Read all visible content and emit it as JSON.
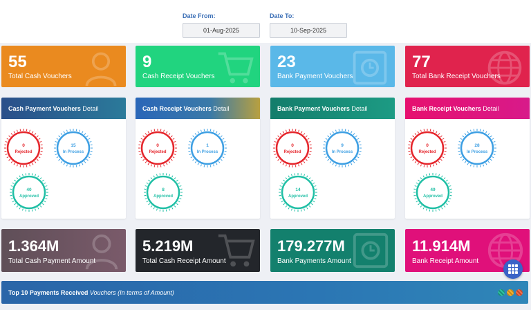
{
  "filters": {
    "date_from_label": "Date From:",
    "date_from_value": "01-Aug-2025",
    "date_to_label": "Date To:",
    "date_to_value": "10-Sep-2025"
  },
  "stat_cards": [
    {
      "value": "55",
      "label": "Total Cash Vouchers",
      "color": "#ea8a1f",
      "icon": "user-icon"
    },
    {
      "value": "9",
      "label": "Cash Receipt Vouchers",
      "color": "#21d47f",
      "icon": "cart-icon"
    },
    {
      "value": "23",
      "label": "Bank Payment Vouchers",
      "color": "#5ab8e8",
      "icon": "safe-icon"
    },
    {
      "value": "77",
      "label": "Total Bank Receipt Vouchers",
      "color": "#e0234d",
      "icon": "globe-icon"
    }
  ],
  "detail_cards": [
    {
      "title_bold": "Cash Payment Vouchers",
      "title_rest": " Detail",
      "color": "#2a5f9a",
      "rejected": {
        "value": "0",
        "label": "Rejected"
      },
      "in_process": {
        "value": "15",
        "label": "In Process"
      },
      "approved": {
        "value": "40",
        "label": "Approved"
      }
    },
    {
      "title_bold": "Cash Receipt Vouchers",
      "title_rest": " Detail",
      "color": "#2a6fb0",
      "rejected": {
        "value": "0",
        "label": "Rejected"
      },
      "in_process": {
        "value": "1",
        "label": "In Process"
      },
      "approved": {
        "value": "8",
        "label": "Approved"
      }
    },
    {
      "title_bold": "Bank Payment Vouchers",
      "title_rest": " Detail",
      "color": "#1b8f7b",
      "rejected": {
        "value": "0",
        "label": "Rejected"
      },
      "in_process": {
        "value": "9",
        "label": "In Process"
      },
      "approved": {
        "value": "14",
        "label": "Approved"
      }
    },
    {
      "title_bold": "Bank Receipt Vouchers",
      "title_rest": " Detail",
      "color": "#e0157a",
      "rejected": {
        "value": "0",
        "label": "Rejected"
      },
      "in_process": {
        "value": "28",
        "label": "In Process"
      },
      "approved": {
        "value": "49",
        "label": "Approved"
      }
    }
  ],
  "gauge_colors": {
    "rejected": "#e5252b",
    "in_process": "#3d9fe3",
    "approved": "#1fbfa5"
  },
  "amount_cards": [
    {
      "value": "1.364M",
      "label": "Total Cash Payment Amount",
      "color": "#6a5860",
      "icon": "user-icon"
    },
    {
      "value": "5.219M",
      "label": "Total Cash Receipt Amount",
      "color": "#262a30",
      "icon": "cart-icon"
    },
    {
      "value": "179.277M",
      "label": "Bank Payments Amount",
      "color": "#13806d",
      "icon": "safe-icon"
    },
    {
      "value": "11.914M",
      "label": "Bank Receipt Amount",
      "color": "#e0107a",
      "icon": "globe-icon"
    }
  ],
  "bottom_panel": {
    "title_bold": "Top 10 Payments Received",
    "title_italic": " Vouchers (In terms of Amount)"
  }
}
